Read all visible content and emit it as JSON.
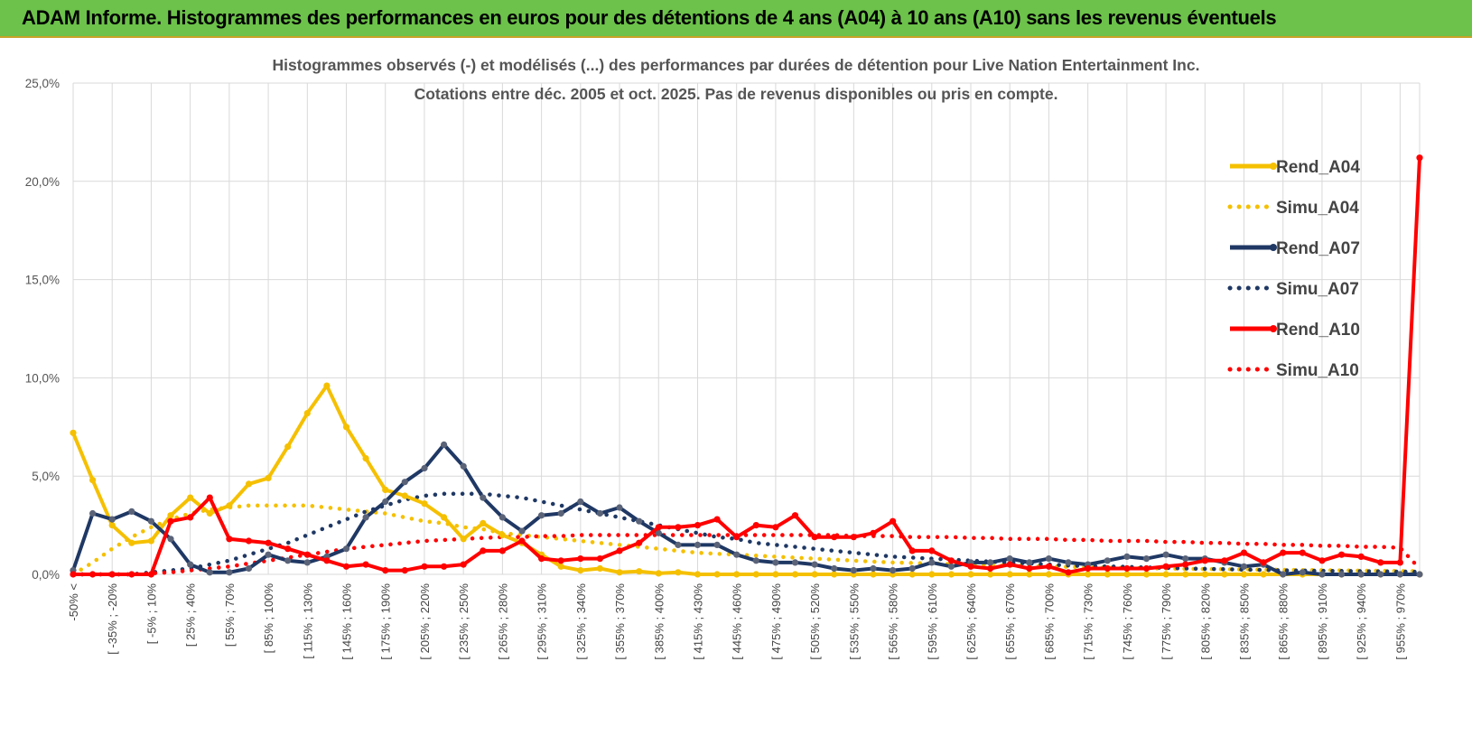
{
  "banner": {
    "title": "ADAM Informe. Histogrammes des performances en euros pour des détentions de 4 ans (A04) à 10 ans (A10) sans les revenus éventuels"
  },
  "chart_data": {
    "type": "line",
    "title_line1": "Histogrammes observés (-) et modélisés (...) des performances par durées de détention pour Live  Nation Entertainment Inc.",
    "title_line2": "Cotations entre déc. 2005 et oct. 2025. Pas de revenus disponibles ou pris en compte.",
    "xlabel": "",
    "ylabel": "",
    "ylim": [
      0,
      25
    ],
    "yticks": [
      "0,0%",
      "5,0%",
      "10,0%",
      "15,0%",
      "20,0%",
      "25,0%"
    ],
    "x_tick_labels": [
      "-50% <",
      "[ -35% ; -20%",
      "[ -5% ; 10%",
      "[ 25% ; 40%",
      "[ 55% ; 70%",
      "[ 85% ; 100%",
      "[ 115% ; 130%",
      "[ 145% ; 160%",
      "[ 175% ; 190%",
      "[ 205% ; 220%",
      "[ 235% ; 250%",
      "[ 265% ; 280%",
      "[ 295% ; 310%",
      "[ 325% ; 340%",
      "[ 355% ; 370%",
      "[ 385% ; 400%",
      "[ 415% ; 430%",
      "[ 445% ; 460%",
      "[ 475% ; 490%",
      "[ 505% ; 520%",
      "[ 535% ; 550%",
      "[ 565% ; 580%",
      "[ 595% ; 610%",
      "[ 625% ; 640%",
      "[ 655% ; 670%",
      "[ 685% ; 700%",
      "[ 715% ; 730%",
      "[ 745% ; 760%",
      "[ 775% ; 790%",
      "[ 805% ; 820%",
      "[ 835% ; 850%",
      "[ 865% ; 880%",
      "[ 895% ; 910%",
      "[ 925% ; 940%",
      "[ 955% ; 970%"
    ],
    "category_count": 70,
    "gridlines": true,
    "legend_position": "right",
    "series": [
      {
        "name": "Rend_A04",
        "style": "solid",
        "color": "#f5c000",
        "values": [
          7.2,
          4.8,
          2.5,
          1.6,
          1.7,
          3.0,
          3.9,
          3.1,
          3.5,
          4.6,
          4.9,
          6.5,
          8.2,
          9.6,
          7.5,
          5.9,
          4.3,
          4.0,
          3.6,
          2.9,
          1.8,
          2.6,
          2.0,
          1.6,
          1.0,
          0.4,
          0.2,
          0.3,
          0.1,
          0.15,
          0.05,
          0.1,
          0,
          0,
          0,
          0,
          0,
          0,
          0,
          0,
          0,
          0,
          0,
          0,
          0,
          0,
          0,
          0,
          0,
          0,
          0,
          0,
          0,
          0,
          0,
          0,
          0,
          0,
          0,
          0,
          0,
          0,
          0,
          0,
          0,
          0,
          0,
          0,
          0,
          0
        ]
      },
      {
        "name": "Simu_A04",
        "style": "dotted",
        "color": "#f5c000",
        "values": [
          0.0,
          0.6,
          1.3,
          1.9,
          2.4,
          2.8,
          3.1,
          3.3,
          3.4,
          3.5,
          3.5,
          3.5,
          3.5,
          3.4,
          3.3,
          3.2,
          3.1,
          2.9,
          2.7,
          2.6,
          2.4,
          2.3,
          2.1,
          2.0,
          1.9,
          1.8,
          1.7,
          1.6,
          1.5,
          1.4,
          1.3,
          1.2,
          1.1,
          1.05,
          1.0,
          0.95,
          0.9,
          0.85,
          0.8,
          0.75,
          0.7,
          0.65,
          0.6,
          0.58,
          0.55,
          0.52,
          0.5,
          0.48,
          0.45,
          0.43,
          0.4,
          0.38,
          0.36,
          0.34,
          0.32,
          0.31,
          0.3,
          0.28,
          0.27,
          0.26,
          0.25,
          0.24,
          0.23,
          0.22,
          0.21,
          0.2,
          0.19,
          0.18,
          0.17,
          0.16
        ]
      },
      {
        "name": "Rend_A07",
        "style": "solid",
        "color": "#1f3864",
        "values": [
          0.2,
          3.1,
          2.8,
          3.2,
          2.7,
          1.8,
          0.5,
          0.1,
          0.1,
          0.3,
          1.0,
          0.7,
          0.6,
          0.9,
          1.3,
          2.9,
          3.7,
          4.7,
          5.4,
          6.6,
          5.5,
          3.9,
          2.9,
          2.2,
          3.0,
          3.1,
          3.7,
          3.1,
          3.4,
          2.7,
          2.1,
          1.5,
          1.5,
          1.5,
          1.0,
          0.7,
          0.6,
          0.6,
          0.5,
          0.3,
          0.2,
          0.3,
          0.2,
          0.3,
          0.6,
          0.4,
          0.6,
          0.6,
          0.8,
          0.6,
          0.8,
          0.6,
          0.5,
          0.7,
          0.9,
          0.8,
          1.0,
          0.8,
          0.8,
          0.6,
          0.4,
          0.5,
          0.0,
          0.1,
          0.0,
          0.0,
          0.0,
          0.0,
          0.0,
          0.0
        ]
      },
      {
        "name": "Simu_A07",
        "style": "dotted",
        "color": "#1f3864",
        "values": [
          0.0,
          0.0,
          0.0,
          0.0,
          0.1,
          0.2,
          0.3,
          0.5,
          0.7,
          1.0,
          1.3,
          1.6,
          2.0,
          2.4,
          2.8,
          3.2,
          3.5,
          3.8,
          4.0,
          4.1,
          4.1,
          4.1,
          4.0,
          3.9,
          3.7,
          3.5,
          3.3,
          3.1,
          2.9,
          2.7,
          2.5,
          2.3,
          2.1,
          1.9,
          1.8,
          1.6,
          1.5,
          1.4,
          1.3,
          1.2,
          1.1,
          1.0,
          0.9,
          0.85,
          0.8,
          0.75,
          0.7,
          0.65,
          0.6,
          0.55,
          0.5,
          0.45,
          0.42,
          0.4,
          0.38,
          0.35,
          0.33,
          0.3,
          0.28,
          0.26,
          0.24,
          0.22,
          0.2,
          0.19,
          0.18,
          0.17,
          0.16,
          0.15,
          0.14,
          0.13
        ]
      },
      {
        "name": "Rend_A10",
        "style": "solid",
        "color": "#ff0000",
        "values": [
          0.0,
          0.0,
          0.0,
          0.0,
          0.0,
          2.7,
          2.9,
          3.9,
          1.8,
          1.7,
          1.6,
          1.3,
          1.0,
          0.7,
          0.4,
          0.5,
          0.2,
          0.2,
          0.4,
          0.4,
          0.5,
          1.2,
          1.2,
          1.7,
          0.8,
          0.7,
          0.8,
          0.8,
          1.2,
          1.6,
          2.4,
          2.4,
          2.5,
          2.8,
          1.9,
          2.5,
          2.4,
          3.0,
          1.9,
          1.9,
          1.9,
          2.1,
          2.7,
          1.2,
          1.2,
          0.7,
          0.4,
          0.3,
          0.5,
          0.3,
          0.4,
          0.1,
          0.3,
          0.3,
          0.3,
          0.3,
          0.4,
          0.5,
          0.7,
          0.7,
          1.1,
          0.6,
          1.1,
          1.1,
          0.7,
          1.0,
          0.9,
          0.6,
          0.6,
          21.2
        ]
      },
      {
        "name": "Simu_A10",
        "style": "dotted",
        "color": "#ff0000",
        "values": [
          0.0,
          0.0,
          0.0,
          0.0,
          0.05,
          0.1,
          0.2,
          0.3,
          0.4,
          0.55,
          0.7,
          0.85,
          1.0,
          1.15,
          1.3,
          1.4,
          1.5,
          1.6,
          1.7,
          1.75,
          1.8,
          1.85,
          1.9,
          1.9,
          1.95,
          1.95,
          2.0,
          2.0,
          2.0,
          2.0,
          2.0,
          2.0,
          2.0,
          2.0,
          2.0,
          2.0,
          2.0,
          2.0,
          2.0,
          2.0,
          1.95,
          1.95,
          1.95,
          1.9,
          1.9,
          1.9,
          1.85,
          1.85,
          1.8,
          1.8,
          1.8,
          1.75,
          1.75,
          1.7,
          1.7,
          1.7,
          1.65,
          1.65,
          1.6,
          1.6,
          1.55,
          1.55,
          1.5,
          1.5,
          1.45,
          1.45,
          1.4,
          1.4,
          1.35,
          0.3
        ]
      }
    ]
  }
}
